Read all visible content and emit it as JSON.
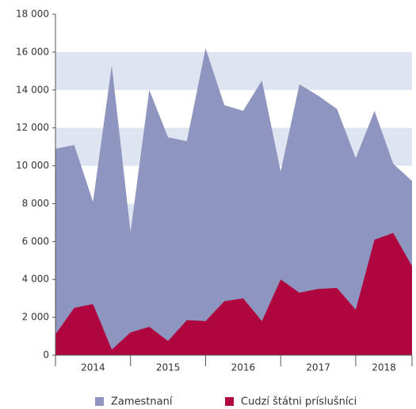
{
  "chart_data": {
    "type": "area",
    "categories": [
      "2014",
      null,
      null,
      null,
      "2015",
      null,
      null,
      null,
      "2016",
      null,
      null,
      null,
      "2017",
      null,
      null,
      null,
      "2018",
      null,
      null,
      null
    ],
    "series": [
      {
        "name": "Zamestnaní",
        "color": "#8e95bf",
        "values": [
          10900,
          11100,
          8100,
          15300,
          6500,
          14000,
          11500,
          11300,
          16200,
          13200,
          12900,
          14500,
          9700,
          14300,
          13700,
          13000,
          10400,
          12900,
          10100,
          9200
        ]
      },
      {
        "name": "Cudzí štátni príslušníci",
        "color": "#b0063f",
        "values": [
          1100,
          2500,
          2700,
          300,
          1200,
          1500,
          750,
          1850,
          1800,
          2850,
          3000,
          1800,
          4000,
          3300,
          3500,
          3550,
          2400,
          6100,
          6450,
          4700
        ]
      }
    ],
    "ylim": [
      0,
      18000
    ],
    "yticks": [
      0,
      {
        "value": 2000,
        "label": "2 000"
      },
      {
        "value": 4000,
        "label": "4 000"
      },
      {
        "value": 6000,
        "label": "6 000"
      },
      {
        "value": 8000,
        "label": "8 000"
      },
      {
        "value": 10000,
        "label": "10 000"
      },
      {
        "value": 12000,
        "label": "12 000"
      },
      {
        "value": 14000,
        "label": "14 000"
      },
      {
        "value": 16000,
        "label": "16 000"
      },
      {
        "value": 18000,
        "label": "18 000"
      }
    ],
    "grid": true,
    "band_color": "#dfe4f1",
    "legend": "bottom"
  }
}
